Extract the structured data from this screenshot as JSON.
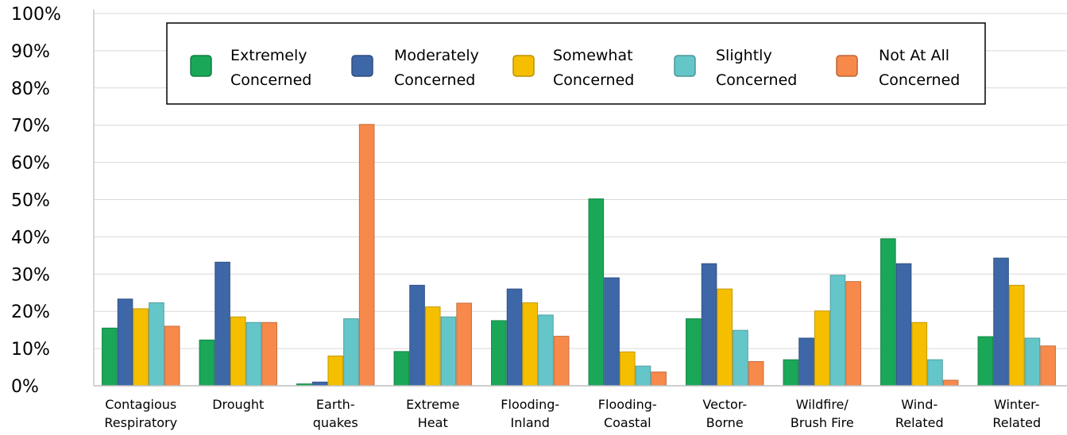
{
  "chart_data": {
    "type": "bar",
    "categories": [
      [
        "Contagious",
        "Respiratory"
      ],
      [
        "Drought"
      ],
      [
        "Earth-",
        "quakes"
      ],
      [
        "Extreme",
        "Heat"
      ],
      [
        "Flooding-",
        "Inland"
      ],
      [
        "Flooding-",
        "Coastal"
      ],
      [
        "Vector-",
        "Borne"
      ],
      [
        "Wildfire/",
        "Brush Fire"
      ],
      [
        "Wind-",
        "Related"
      ],
      [
        "Winter-",
        "Related"
      ]
    ],
    "series": [
      {
        "name": [
          "Extremely",
          "Concerned"
        ],
        "color": "#1aa758",
        "values": [
          15.5,
          12.3,
          0.5,
          9.2,
          17.5,
          50.2,
          18.0,
          7.0,
          39.5,
          13.2
        ]
      },
      {
        "name": [
          "Moderately",
          "Concerned"
        ],
        "color": "#3d67a6",
        "values": [
          23.3,
          33.2,
          1.0,
          27.0,
          26.0,
          29.0,
          32.8,
          12.8,
          32.8,
          34.3
        ]
      },
      {
        "name": [
          "Somewhat",
          "Concerned"
        ],
        "color": "#f5bf00",
        "values": [
          20.7,
          18.5,
          8.0,
          21.2,
          22.3,
          9.1,
          26.0,
          20.1,
          17.0,
          27.0
        ]
      },
      {
        "name": [
          "Slightly",
          "Concerned"
        ],
        "color": "#65c6c9",
        "values": [
          22.3,
          17.0,
          18.0,
          18.5,
          19.0,
          5.3,
          14.9,
          29.7,
          7.0,
          12.8
        ]
      },
      {
        "name": [
          "Not At All",
          "Concerned"
        ],
        "color": "#f7894b",
        "values": [
          16.0,
          17.0,
          70.2,
          22.2,
          13.3,
          3.7,
          6.5,
          28.0,
          1.5,
          10.7
        ]
      }
    ],
    "y_ticks": [
      "0%",
      "10%",
      "20%",
      "30%",
      "40%",
      "50%",
      "60%",
      "70%",
      "80%",
      "90%",
      "100%"
    ],
    "ylim": [
      0,
      100
    ],
    "grid": true,
    "legend_position": "top"
  }
}
